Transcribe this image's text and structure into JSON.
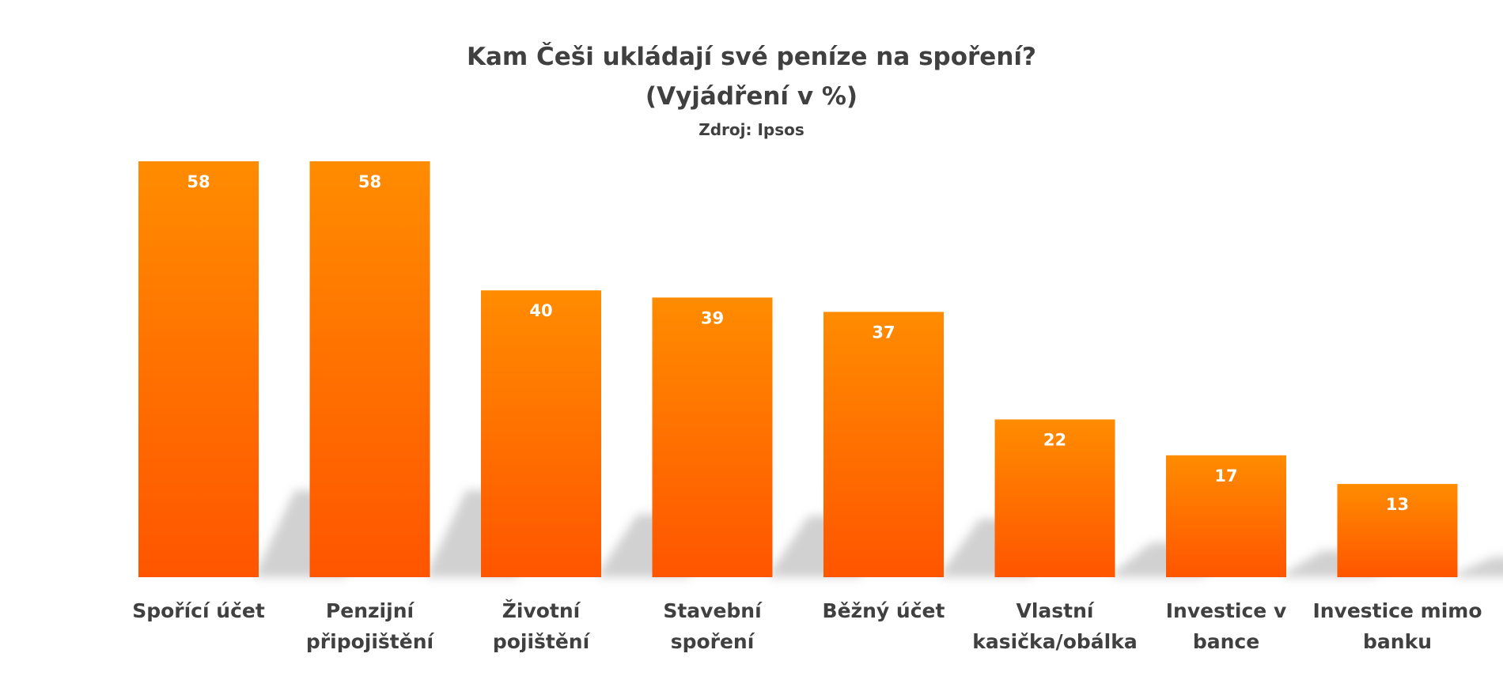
{
  "chart_data": {
    "type": "bar",
    "title": "Kam Češi ukládají své peníze na spoření?",
    "subtitle": "(Vyjádření v %)",
    "source": "Zdroj: Ipsos",
    "categories": [
      [
        "Spořící účet"
      ],
      [
        "Penzijní",
        "připojištění"
      ],
      [
        "Životní",
        "pojištění"
      ],
      [
        "Stavební",
        "spoření"
      ],
      [
        "Běžný účet"
      ],
      [
        "Vlastní",
        "kasička/obálka"
      ],
      [
        "Investice v",
        "bance"
      ],
      [
        "Investice mimo",
        "banku"
      ]
    ],
    "values": [
      58,
      58,
      40,
      39,
      37,
      22,
      17,
      13
    ],
    "ylim": [
      0,
      58
    ],
    "grid": false,
    "legend": "none",
    "colors": {
      "bar_top": "#FF8C00",
      "bar_bottom": "#FF5500",
      "value_label": "#FFFFFF",
      "text": "#404040",
      "shadow": "#9a9a9a"
    }
  }
}
